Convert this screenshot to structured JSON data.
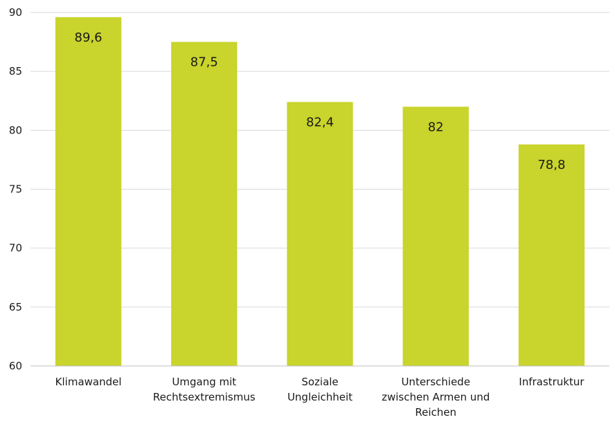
{
  "chart_data": {
    "type": "bar",
    "title": "",
    "xlabel": "",
    "ylabel": "",
    "ylim": [
      60,
      90
    ],
    "yticks": [
      60,
      65,
      70,
      75,
      80,
      85,
      90
    ],
    "ytick_labels": [
      "60",
      "65",
      "70",
      "75",
      "80",
      "85",
      "90"
    ],
    "grid": "horizontal",
    "categories": [
      [
        "Klimawandel"
      ],
      [
        "Umgang mit",
        "Rechtsextremismus"
      ],
      [
        "Soziale",
        "Ungleichheit"
      ],
      [
        "Unterschiede",
        "zwischen Armen und",
        "Reichen"
      ],
      [
        "Infrastruktur"
      ]
    ],
    "values": [
      89.6,
      87.5,
      82.4,
      82,
      78.8
    ],
    "value_labels": [
      "89,6",
      "87,5",
      "82,4",
      "82",
      "78,8"
    ],
    "bar_color": "#c9d42c",
    "grid_color": "#d9d9d9",
    "axis_color": "#bfbfbf"
  }
}
